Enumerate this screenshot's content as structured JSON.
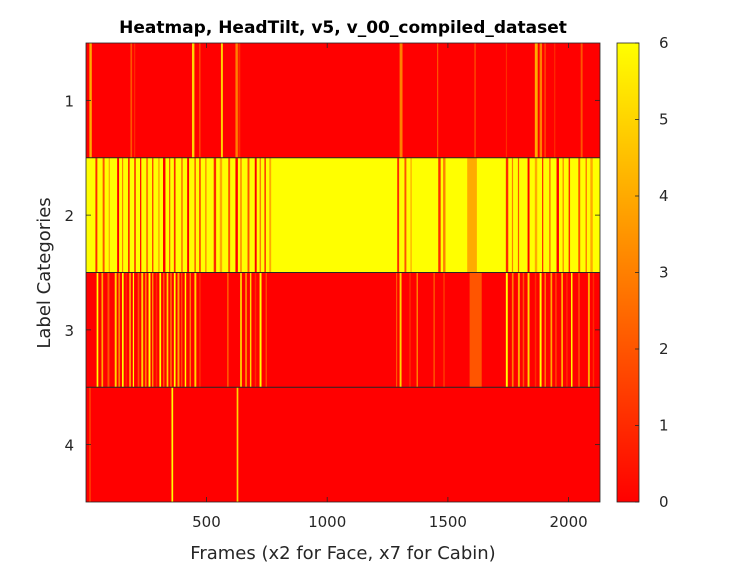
{
  "chart_data": {
    "type": "heatmap",
    "title": "Heatmap, HeadTilt, v5, v_00_compiled_dataset",
    "xlabel": "Frames (x2 for Face, x7 for Cabin)",
    "ylabel": "Label Categories",
    "xlim": [
      1,
      2130
    ],
    "x_ticks": [
      500,
      1000,
      1500,
      2000
    ],
    "x_tick_labels": [
      "500",
      "1000",
      "1500",
      "2000"
    ],
    "rows": [
      1,
      2,
      3,
      4
    ],
    "row_labels": [
      "1",
      "2",
      "3",
      "4"
    ],
    "colormap": "autumn",
    "colormap_colors": [
      "#ff0000",
      "#ffff00"
    ],
    "clim": [
      0,
      6
    ],
    "colorbar_ticks": [
      0,
      1,
      2,
      3,
      4,
      5,
      6
    ],
    "colorbar_tick_labels": [
      "0",
      "1",
      "2",
      "3",
      "4",
      "5",
      "6"
    ],
    "background_values": [
      0,
      6,
      0,
      0
    ],
    "segments": [
      [
        [
          15,
          25,
          4
        ],
        [
          185,
          192,
          2
        ],
        [
          200,
          205,
          1
        ],
        [
          440,
          450,
          5
        ],
        [
          470,
          475,
          2
        ],
        [
          560,
          568,
          5
        ],
        [
          620,
          630,
          3
        ],
        [
          632,
          640,
          1
        ],
        [
          1300,
          1312,
          3
        ],
        [
          1455,
          1460,
          2
        ],
        [
          1610,
          1615,
          2
        ],
        [
          1740,
          1745,
          1
        ],
        [
          1860,
          1872,
          4
        ],
        [
          1880,
          1890,
          3
        ],
        [
          1900,
          1905,
          2
        ],
        [
          1940,
          1945,
          1
        ],
        [
          2050,
          2058,
          2
        ]
      ],
      [
        [
          40,
          48,
          1
        ],
        [
          70,
          78,
          2
        ],
        [
          95,
          100,
          4
        ],
        [
          130,
          138,
          0
        ],
        [
          150,
          155,
          3
        ],
        [
          175,
          182,
          1
        ],
        [
          200,
          208,
          2
        ],
        [
          225,
          230,
          0
        ],
        [
          250,
          258,
          3
        ],
        [
          275,
          280,
          1
        ],
        [
          300,
          306,
          4
        ],
        [
          320,
          330,
          0
        ],
        [
          345,
          350,
          2
        ],
        [
          365,
          372,
          1
        ],
        [
          395,
          402,
          3
        ],
        [
          420,
          428,
          0
        ],
        [
          450,
          456,
          2
        ],
        [
          470,
          476,
          1
        ],
        [
          495,
          500,
          3
        ],
        [
          530,
          540,
          1
        ],
        [
          555,
          565,
          4
        ],
        [
          590,
          598,
          2
        ],
        [
          620,
          630,
          0
        ],
        [
          640,
          646,
          3
        ],
        [
          670,
          678,
          2
        ],
        [
          700,
          708,
          0
        ],
        [
          720,
          726,
          3
        ],
        [
          740,
          746,
          1
        ],
        [
          760,
          768,
          4
        ],
        [
          1290,
          1298,
          1
        ],
        [
          1320,
          1328,
          2
        ],
        [
          1345,
          1350,
          4
        ],
        [
          1460,
          1470,
          1
        ],
        [
          1480,
          1490,
          3
        ],
        [
          1580,
          1620,
          4
        ],
        [
          1740,
          1750,
          1
        ],
        [
          1765,
          1770,
          3
        ],
        [
          1790,
          1795,
          2
        ],
        [
          1830,
          1838,
          0
        ],
        [
          1860,
          1870,
          4
        ],
        [
          1890,
          1895,
          1
        ],
        [
          1920,
          1925,
          2
        ],
        [
          1950,
          1960,
          0
        ],
        [
          1975,
          1980,
          3
        ],
        [
          2000,
          2006,
          1
        ],
        [
          2040,
          2048,
          2
        ],
        [
          2070,
          2076,
          3
        ],
        [
          2090,
          2100,
          4
        ]
      ],
      [
        [
          45,
          52,
          6
        ],
        [
          65,
          72,
          4
        ],
        [
          90,
          98,
          2
        ],
        [
          120,
          128,
          5
        ],
        [
          135,
          142,
          3
        ],
        [
          150,
          157,
          6
        ],
        [
          165,
          170,
          1
        ],
        [
          180,
          187,
          4
        ],
        [
          195,
          200,
          6
        ],
        [
          215,
          222,
          2
        ],
        [
          230,
          238,
          5
        ],
        [
          245,
          252,
          3
        ],
        [
          260,
          268,
          6
        ],
        [
          275,
          280,
          4
        ],
        [
          290,
          296,
          1
        ],
        [
          305,
          312,
          6
        ],
        [
          320,
          326,
          2
        ],
        [
          335,
          342,
          5
        ],
        [
          350,
          356,
          3
        ],
        [
          365,
          372,
          6
        ],
        [
          380,
          388,
          4
        ],
        [
          395,
          400,
          2
        ],
        [
          410,
          416,
          6
        ],
        [
          430,
          436,
          3
        ],
        [
          450,
          458,
          5
        ],
        [
          470,
          476,
          1
        ],
        [
          585,
          592,
          2
        ],
        [
          640,
          646,
          6
        ],
        [
          660,
          668,
          3
        ],
        [
          680,
          686,
          5
        ],
        [
          700,
          706,
          1
        ],
        [
          720,
          728,
          6
        ],
        [
          745,
          750,
          2
        ],
        [
          1285,
          1290,
          2
        ],
        [
          1300,
          1308,
          5
        ],
        [
          1340,
          1346,
          1
        ],
        [
          1370,
          1376,
          3
        ],
        [
          1440,
          1446,
          2
        ],
        [
          1480,
          1488,
          1
        ],
        [
          1590,
          1640,
          2
        ],
        [
          1740,
          1748,
          6
        ],
        [
          1765,
          1772,
          3
        ],
        [
          1790,
          1798,
          4
        ],
        [
          1810,
          1816,
          2
        ],
        [
          1830,
          1838,
          5
        ],
        [
          1860,
          1866,
          1
        ],
        [
          1880,
          1888,
          6
        ],
        [
          1900,
          1906,
          3
        ],
        [
          1925,
          1932,
          4
        ],
        [
          1945,
          1950,
          2
        ],
        [
          1970,
          1976,
          5
        ],
        [
          1990,
          1996,
          1
        ],
        [
          2010,
          2016,
          6
        ],
        [
          2040,
          2046,
          2
        ],
        [
          2080,
          2088,
          4
        ],
        [
          2100,
          2106,
          1
        ]
      ],
      [
        [
          15,
          20,
          2
        ],
        [
          355,
          362,
          6
        ],
        [
          625,
          632,
          5
        ]
      ]
    ]
  }
}
